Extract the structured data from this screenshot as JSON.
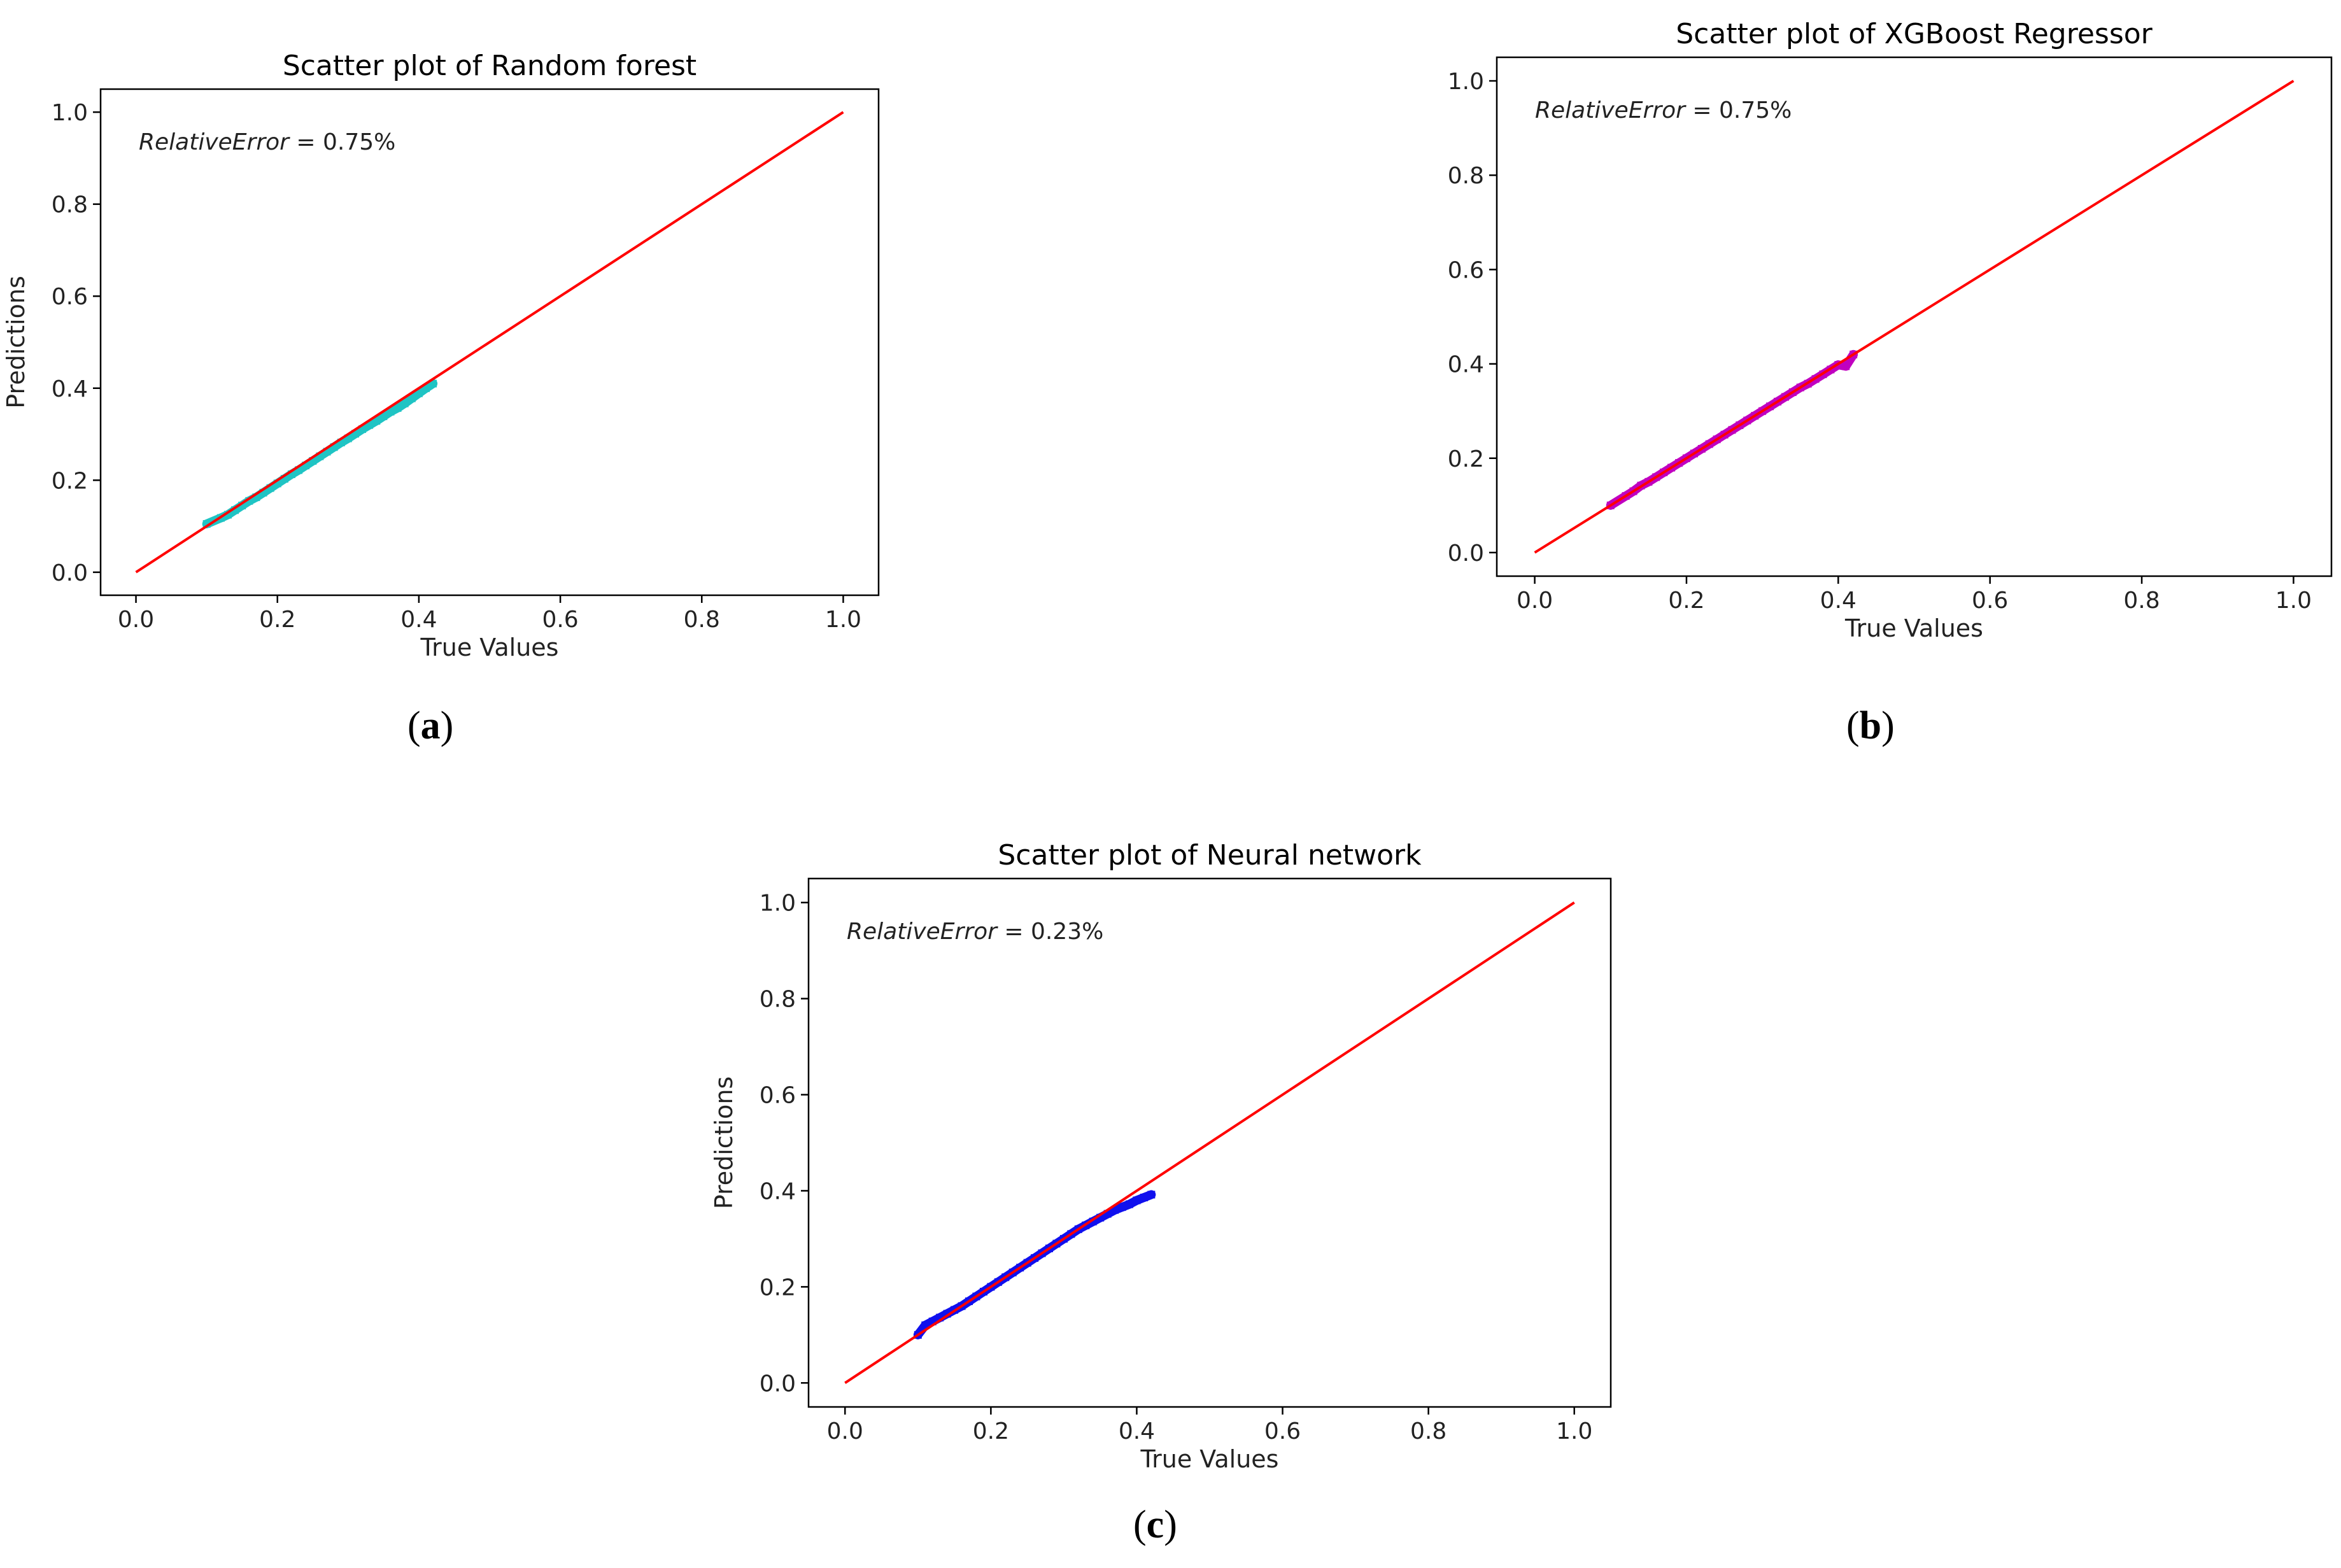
{
  "chart_data": [
    {
      "id": "a",
      "type": "scatter",
      "title": "Scatter plot of Random forest",
      "xlabel": "True Values",
      "ylabel": "Predictions",
      "xlim": [
        -0.05,
        1.05
      ],
      "ylim": [
        -0.05,
        1.05
      ],
      "xticks": [
        "0.0",
        "0.2",
        "0.4",
        "0.6",
        "0.8",
        "1.0"
      ],
      "yticks": [
        "0.0",
        "0.2",
        "0.4",
        "0.6",
        "0.8",
        "1.0"
      ],
      "annotation_italic": "RelativeError",
      "annotation_value": " = 0.75%",
      "caption_letter": "a",
      "point_color": "#1fc4c4",
      "line_color": "#ff0000",
      "reference_line": {
        "x": [
          0,
          1
        ],
        "y": [
          0,
          1
        ]
      },
      "points": {
        "x": [
          0.1,
          0.12,
          0.13,
          0.14,
          0.15,
          0.16,
          0.17,
          0.18,
          0.19,
          0.2,
          0.21,
          0.22,
          0.23,
          0.24,
          0.25,
          0.26,
          0.27,
          0.28,
          0.29,
          0.3,
          0.31,
          0.32,
          0.33,
          0.34,
          0.35,
          0.36,
          0.37,
          0.38,
          0.39,
          0.4,
          0.41,
          0.42
        ],
        "y": [
          0.105,
          0.118,
          0.125,
          0.135,
          0.145,
          0.155,
          0.163,
          0.173,
          0.183,
          0.193,
          0.203,
          0.213,
          0.222,
          0.232,
          0.242,
          0.252,
          0.262,
          0.272,
          0.282,
          0.291,
          0.301,
          0.311,
          0.32,
          0.329,
          0.339,
          0.349,
          0.357,
          0.367,
          0.378,
          0.389,
          0.4,
          0.41
        ]
      }
    },
    {
      "id": "b",
      "type": "scatter",
      "title": "Scatter plot of XGBoost Regressor",
      "xlabel": "True Values",
      "ylabel": "",
      "xlim": [
        -0.05,
        1.05
      ],
      "ylim": [
        -0.05,
        1.05
      ],
      "xticks": [
        "0.0",
        "0.2",
        "0.4",
        "0.6",
        "0.8",
        "1.0"
      ],
      "yticks": [
        "0.0",
        "0.2",
        "0.4",
        "0.6",
        "0.8",
        "1.0"
      ],
      "annotation_italic": "RelativeError",
      "annotation_value": " = 0.75%",
      "caption_letter": "b",
      "point_color": "#c000c0",
      "line_color": "#ff0000",
      "reference_line": {
        "x": [
          0,
          1
        ],
        "y": [
          0,
          1
        ]
      },
      "points": {
        "x": [
          0.1,
          0.12,
          0.13,
          0.14,
          0.15,
          0.16,
          0.17,
          0.18,
          0.19,
          0.2,
          0.21,
          0.22,
          0.23,
          0.24,
          0.25,
          0.26,
          0.27,
          0.28,
          0.29,
          0.3,
          0.31,
          0.32,
          0.33,
          0.34,
          0.35,
          0.36,
          0.37,
          0.38,
          0.39,
          0.4,
          0.41,
          0.42
        ],
        "y": [
          0.1,
          0.12,
          0.13,
          0.142,
          0.15,
          0.16,
          0.17,
          0.18,
          0.19,
          0.2,
          0.21,
          0.22,
          0.23,
          0.24,
          0.25,
          0.26,
          0.27,
          0.28,
          0.29,
          0.3,
          0.31,
          0.32,
          0.33,
          0.34,
          0.35,
          0.358,
          0.368,
          0.378,
          0.388,
          0.398,
          0.395,
          0.42
        ]
      }
    },
    {
      "id": "c",
      "type": "scatter",
      "title": "Scatter plot of Neural network",
      "xlabel": "True Values",
      "ylabel": "Predictions",
      "xlim": [
        -0.05,
        1.05
      ],
      "ylim": [
        -0.05,
        1.05
      ],
      "xticks": [
        "0.0",
        "0.2",
        "0.4",
        "0.6",
        "0.8",
        "1.0"
      ],
      "yticks": [
        "0.0",
        "0.2",
        "0.4",
        "0.6",
        "0.8",
        "1.0"
      ],
      "annotation_italic": "RelativeError",
      "annotation_value": " = 0.23%",
      "caption_letter": "c",
      "point_color": "#1010ee",
      "line_color": "#ff0000",
      "reference_line": {
        "x": [
          0,
          1
        ],
        "y": [
          0,
          1
        ]
      },
      "points": {
        "x": [
          0.1,
          0.11,
          0.12,
          0.13,
          0.14,
          0.15,
          0.16,
          0.17,
          0.18,
          0.19,
          0.2,
          0.21,
          0.22,
          0.23,
          0.24,
          0.25,
          0.26,
          0.27,
          0.28,
          0.29,
          0.3,
          0.31,
          0.32,
          0.33,
          0.34,
          0.35,
          0.36,
          0.37,
          0.38,
          0.39,
          0.4,
          0.41,
          0.42
        ],
        "y": [
          0.1,
          0.12,
          0.128,
          0.136,
          0.144,
          0.152,
          0.16,
          0.17,
          0.18,
          0.19,
          0.2,
          0.21,
          0.22,
          0.23,
          0.24,
          0.25,
          0.26,
          0.27,
          0.28,
          0.29,
          0.3,
          0.31,
          0.32,
          0.328,
          0.336,
          0.344,
          0.352,
          0.36,
          0.366,
          0.372,
          0.38,
          0.386,
          0.392
        ]
      }
    }
  ]
}
